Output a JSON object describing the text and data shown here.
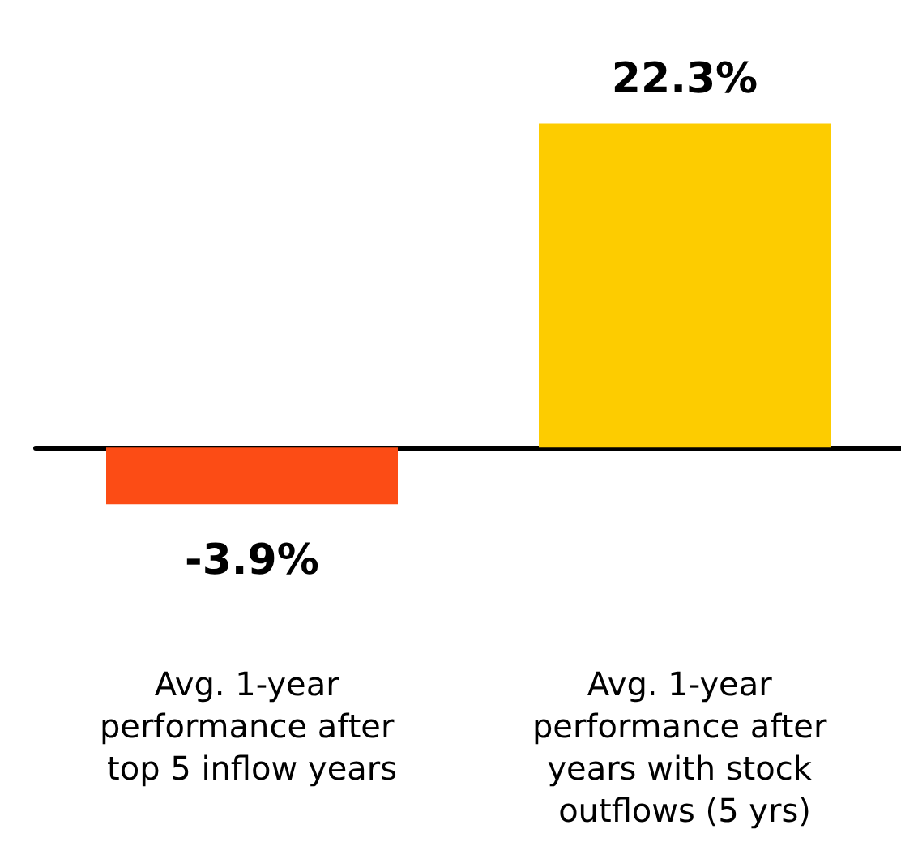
{
  "chart_data": {
    "type": "bar",
    "categories": [
      "Avg. 1-year performance after top 5 inflow years",
      "Avg. 1-year performance after years with stock outflows (5 yrs)"
    ],
    "values": [
      -3.9,
      22.3
    ],
    "colors": [
      "#fc4c15",
      "#fdcc00"
    ],
    "value_labels": [
      "-3.9%",
      "22.3%"
    ]
  }
}
